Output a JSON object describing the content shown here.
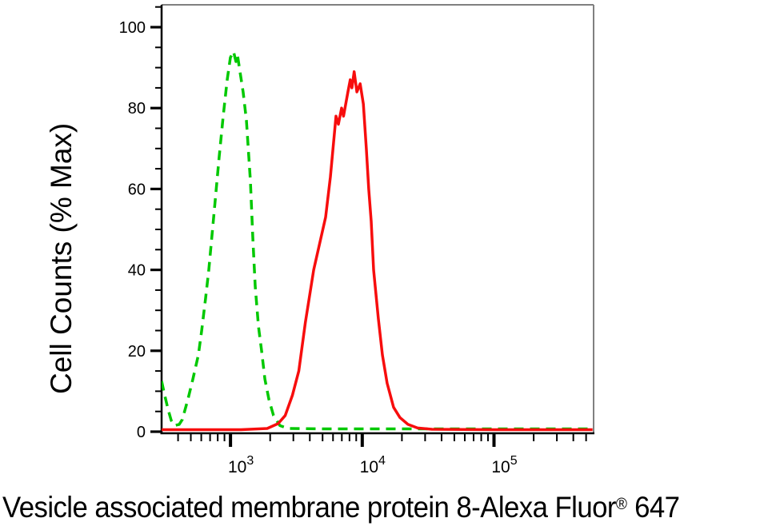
{
  "chart_data": {
    "type": "line",
    "subtype": "flow-cytometry-histogram-overlay",
    "title": "",
    "ylabel": "Cell Counts (% Max)",
    "xlabel": {
      "main": "Vesicle associated membrane protein 8-Alexa Fluor",
      "sup": "®",
      "suffix": " 647"
    },
    "x_scale": "log10",
    "xlim": [
      300,
      570000
    ],
    "ylim": [
      0,
      105
    ],
    "grid": false,
    "legend": "none",
    "y_major_ticks": [
      0,
      20,
      40,
      60,
      80,
      100
    ],
    "y_minor_step": 5,
    "x_major_ticks": [
      {
        "value": 1000,
        "base": "10",
        "exp": "3"
      },
      {
        "value": 10000,
        "base": "10",
        "exp": "4"
      },
      {
        "value": 100000,
        "base": "10",
        "exp": "5"
      }
    ],
    "x_minor_multipliers": [
      2,
      3,
      4,
      5,
      6,
      7,
      8,
      9
    ],
    "axis_colors": {
      "left": "#000000",
      "bottom": "#000000",
      "top": "#808080",
      "right": "#808080"
    },
    "series": [
      {
        "name": "green-dashed-control",
        "color": "#00c800",
        "line_style": "dashed",
        "points": [
          [
            300,
            12.5
          ],
          [
            317,
            9
          ],
          [
            336,
            5.5
          ],
          [
            355,
            2.8
          ],
          [
            375,
            1.5
          ],
          [
            408,
            1.8
          ],
          [
            431,
            3
          ],
          [
            475,
            8
          ],
          [
            518,
            13
          ],
          [
            571,
            19
          ],
          [
            604,
            25
          ],
          [
            647,
            33
          ],
          [
            684,
            40
          ],
          [
            755,
            55
          ],
          [
            821,
            68
          ],
          [
            880,
            78
          ],
          [
            944,
            87
          ],
          [
            998,
            92.5
          ],
          [
            1055,
            94
          ],
          [
            1100,
            91.5
          ],
          [
            1130,
            93
          ],
          [
            1180,
            89
          ],
          [
            1247,
            84
          ],
          [
            1320,
            77
          ],
          [
            1416,
            62
          ],
          [
            1477,
            48
          ],
          [
            1540,
            36
          ],
          [
            1630,
            26
          ],
          [
            1722,
            20
          ],
          [
            1824,
            13
          ],
          [
            1955,
            8
          ],
          [
            2122,
            4
          ],
          [
            2372,
            1.5
          ],
          [
            2730,
            0.8
          ],
          [
            5000,
            0.7
          ],
          [
            20000,
            0.7
          ],
          [
            100000,
            0.7
          ],
          [
            560000,
            0.7
          ]
        ]
      },
      {
        "name": "red-solid-stained",
        "color": "#f70d0d",
        "line_style": "solid",
        "points": [
          [
            300,
            0.5
          ],
          [
            1200,
            0.5
          ],
          [
            1900,
            0.8
          ],
          [
            2300,
            2
          ],
          [
            2600,
            4
          ],
          [
            2950,
            9
          ],
          [
            3300,
            15
          ],
          [
            3700,
            27
          ],
          [
            4280,
            40
          ],
          [
            5270,
            53
          ],
          [
            5730,
            63
          ],
          [
            6320,
            78
          ],
          [
            6590,
            76
          ],
          [
            6970,
            80
          ],
          [
            7210,
            78
          ],
          [
            7790,
            84
          ],
          [
            8110,
            87
          ],
          [
            8350,
            85
          ],
          [
            8680,
            89
          ],
          [
            9100,
            84
          ],
          [
            9640,
            86
          ],
          [
            10200,
            81
          ],
          [
            10740,
            70
          ],
          [
            11200,
            60
          ],
          [
            11690,
            52
          ],
          [
            12190,
            40
          ],
          [
            13240,
            28
          ],
          [
            14220,
            19
          ],
          [
            15450,
            12
          ],
          [
            17300,
            6
          ],
          [
            19320,
            3.5
          ],
          [
            22230,
            1.8
          ],
          [
            26300,
            0.9
          ],
          [
            33800,
            0.6
          ],
          [
            100000,
            0.5
          ],
          [
            560000,
            0.5
          ]
        ]
      }
    ]
  }
}
